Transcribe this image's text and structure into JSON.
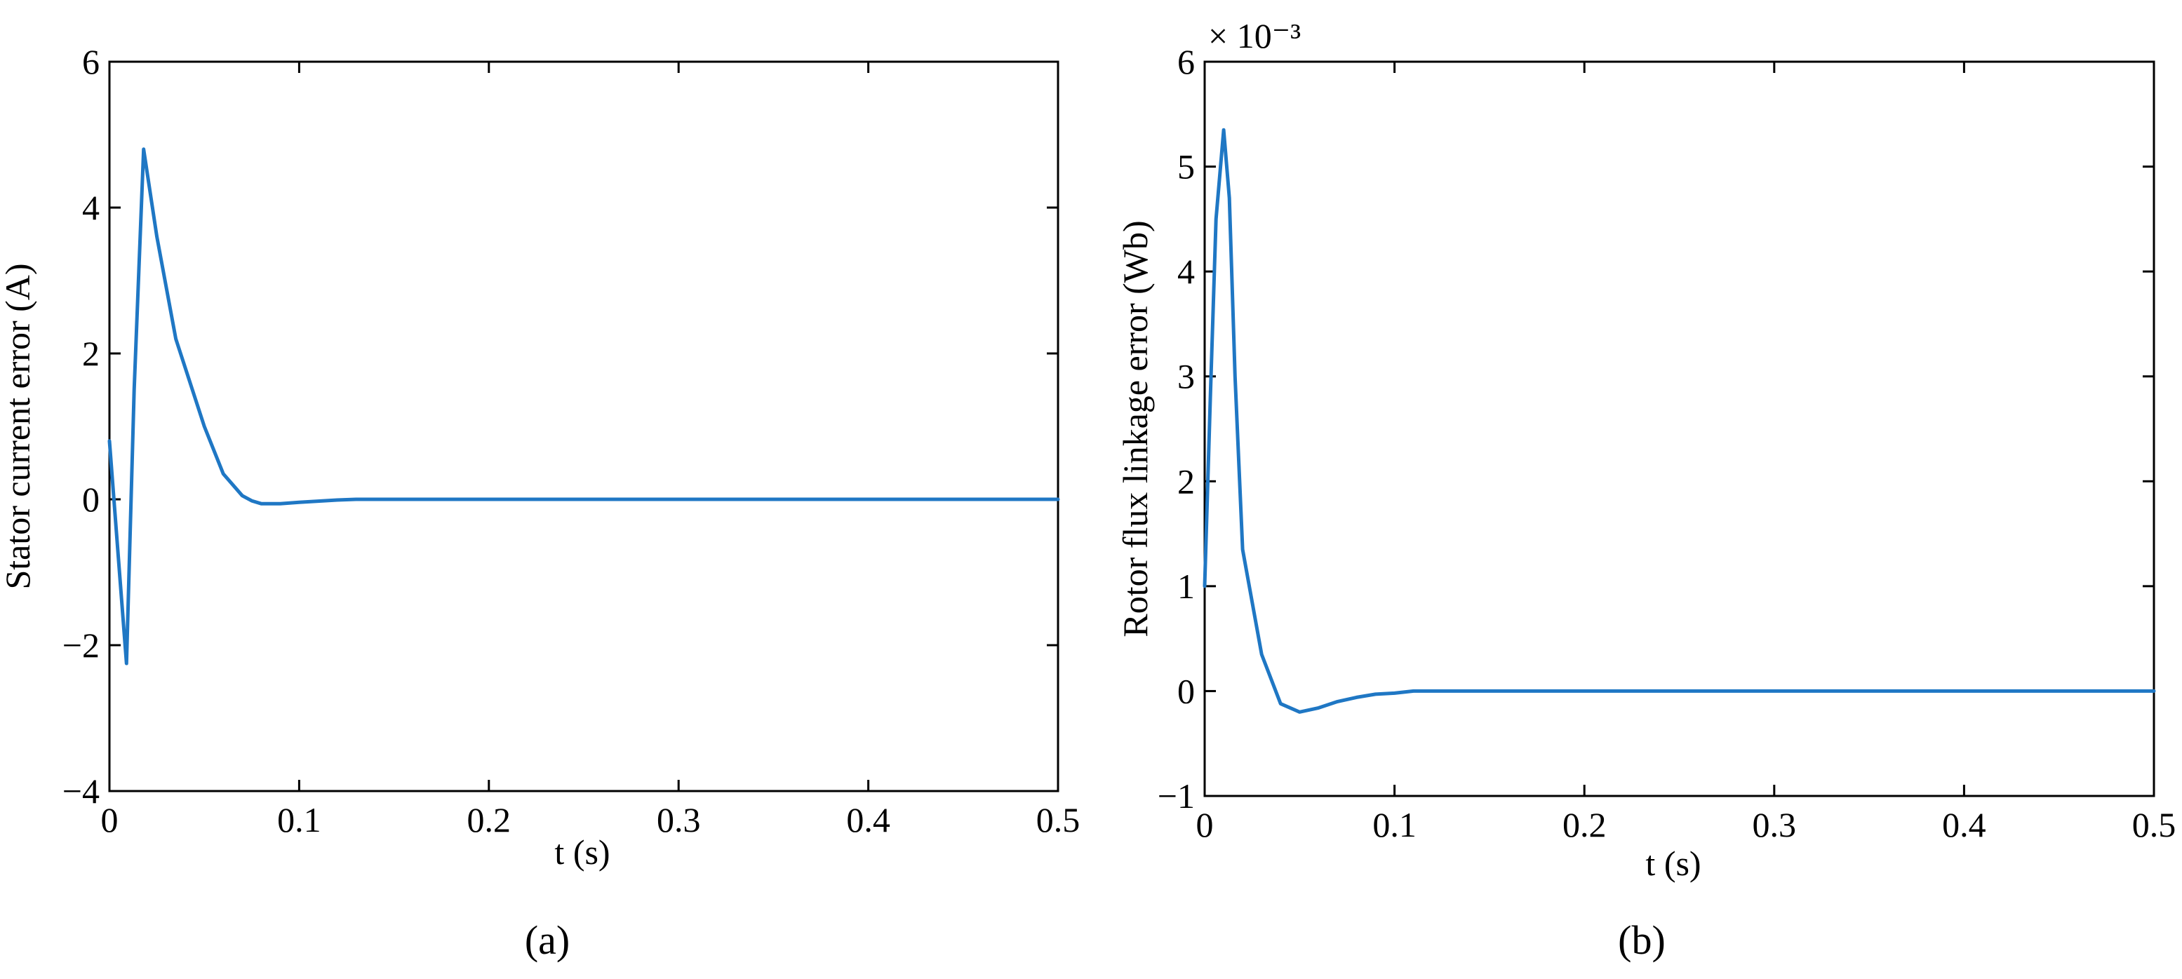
{
  "chart_data": [
    {
      "type": "line",
      "title": "",
      "caption": "(a)",
      "xlabel": "t (s)",
      "ylabel": "Stator current error (A)",
      "xlim": [
        0,
        0.5
      ],
      "ylim": [
        -4,
        6
      ],
      "xticks": [
        0,
        0.1,
        0.2,
        0.3,
        0.4,
        0.5
      ],
      "xtick_labels": [
        "0",
        "0.1",
        "0.2",
        "0.3",
        "0.4",
        "0.5"
      ],
      "yticks": [
        -4,
        -2,
        0,
        2,
        4,
        6
      ],
      "ytick_labels": [
        "−4",
        "−2",
        "0",
        "2",
        "4",
        "6"
      ],
      "exponent_label": "",
      "grid": false,
      "color": "#1f77c4",
      "series": [
        {
          "x": [
            0,
            0.005,
            0.009,
            0.013,
            0.018,
            0.025,
            0.035,
            0.05,
            0.06,
            0.07,
            0.075,
            0.08,
            0.09,
            0.1,
            0.12,
            0.13,
            0.2,
            0.3,
            0.4,
            0.5
          ],
          "y": [
            0.8,
            -0.9,
            -2.25,
            1.5,
            4.8,
            3.6,
            2.2,
            1.0,
            0.35,
            0.05,
            -0.02,
            -0.06,
            -0.06,
            -0.04,
            -0.01,
            0,
            0,
            0,
            0,
            0
          ]
        }
      ]
    },
    {
      "type": "line",
      "title": "",
      "caption": "(b)",
      "xlabel": "t (s)",
      "ylabel": "Rotor flux linkage error (Wb)",
      "xlim": [
        0,
        0.5
      ],
      "ylim": [
        -1,
        6
      ],
      "xticks": [
        0,
        0.1,
        0.2,
        0.3,
        0.4,
        0.5
      ],
      "xtick_labels": [
        "0",
        "0.1",
        "0.2",
        "0.3",
        "0.4",
        "0.5"
      ],
      "yticks": [
        -1,
        0,
        1,
        2,
        3,
        4,
        5,
        6
      ],
      "ytick_labels": [
        "−1",
        "0",
        "1",
        "2",
        "3",
        "4",
        "5",
        "6"
      ],
      "exponent_label": "× 10⁻³",
      "grid": false,
      "color": "#1f77c4",
      "series": [
        {
          "x": [
            0,
            0.003,
            0.006,
            0.01,
            0.013,
            0.016,
            0.02,
            0.03,
            0.04,
            0.05,
            0.06,
            0.07,
            0.08,
            0.09,
            0.1,
            0.11,
            0.2,
            0.3,
            0.4,
            0.5
          ],
          "y": [
            1.0,
            2.8,
            4.5,
            5.35,
            4.7,
            3.0,
            1.35,
            0.35,
            -0.12,
            -0.2,
            -0.16,
            -0.1,
            -0.06,
            -0.03,
            -0.02,
            0,
            0,
            0,
            0,
            0
          ]
        }
      ]
    }
  ]
}
